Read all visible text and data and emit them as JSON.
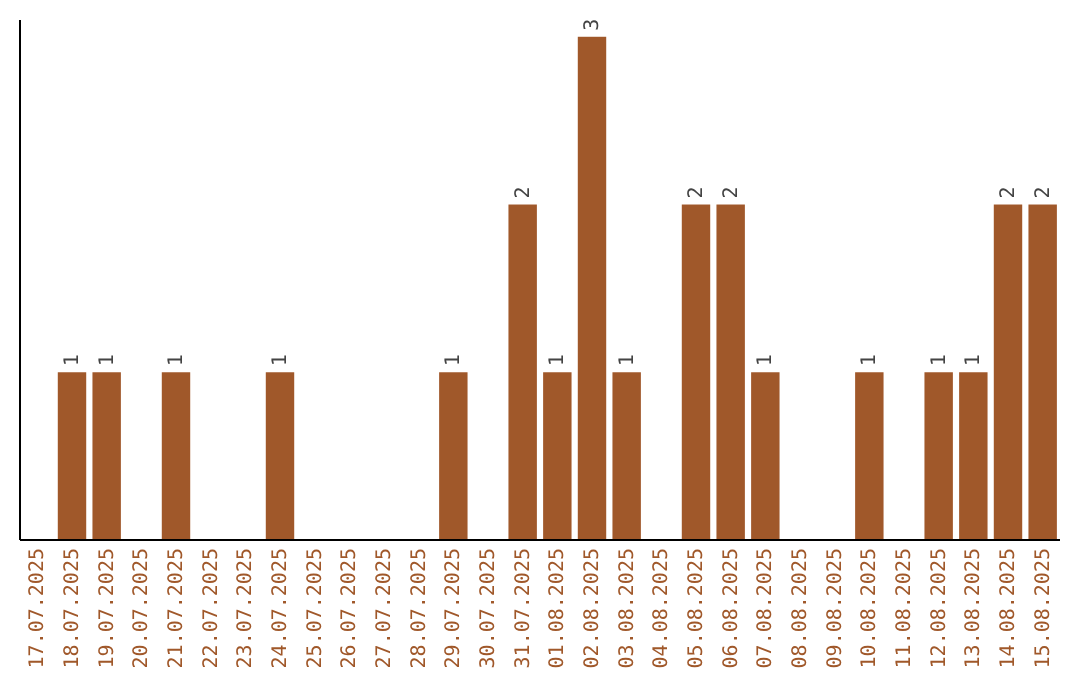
{
  "chart_data": {
    "type": "bar",
    "categories": [
      "17.07.2025",
      "18.07.2025",
      "19.07.2025",
      "20.07.2025",
      "21.07.2025",
      "22.07.2025",
      "23.07.2025",
      "24.07.2025",
      "25.07.2025",
      "26.07.2025",
      "27.07.2025",
      "28.07.2025",
      "29.07.2025",
      "30.07.2025",
      "31.07.2025",
      "01.08.2025",
      "02.08.2025",
      "03.08.2025",
      "04.08.2025",
      "05.08.2025",
      "06.08.2025",
      "07.08.2025",
      "08.08.2025",
      "09.08.2025",
      "10.08.2025",
      "11.08.2025",
      "12.08.2025",
      "13.08.2025",
      "14.08.2025",
      "15.08.2025"
    ],
    "values": [
      0,
      1,
      1,
      0,
      1,
      0,
      0,
      1,
      0,
      0,
      0,
      0,
      1,
      0,
      2,
      1,
      3,
      1,
      0,
      2,
      2,
      1,
      0,
      0,
      1,
      0,
      1,
      1,
      2,
      2
    ],
    "value_labels": [
      null,
      "1",
      "1",
      null,
      "1",
      null,
      null,
      "1",
      null,
      null,
      null,
      null,
      "1",
      null,
      "2",
      "1",
      "3",
      "1",
      null,
      "2",
      "2",
      "1",
      null,
      null,
      "1",
      null,
      "1",
      "1",
      "2",
      "2"
    ],
    "color": "#a0582a",
    "ylim": [
      0,
      3.1
    ],
    "tick_labels": "x"
  }
}
